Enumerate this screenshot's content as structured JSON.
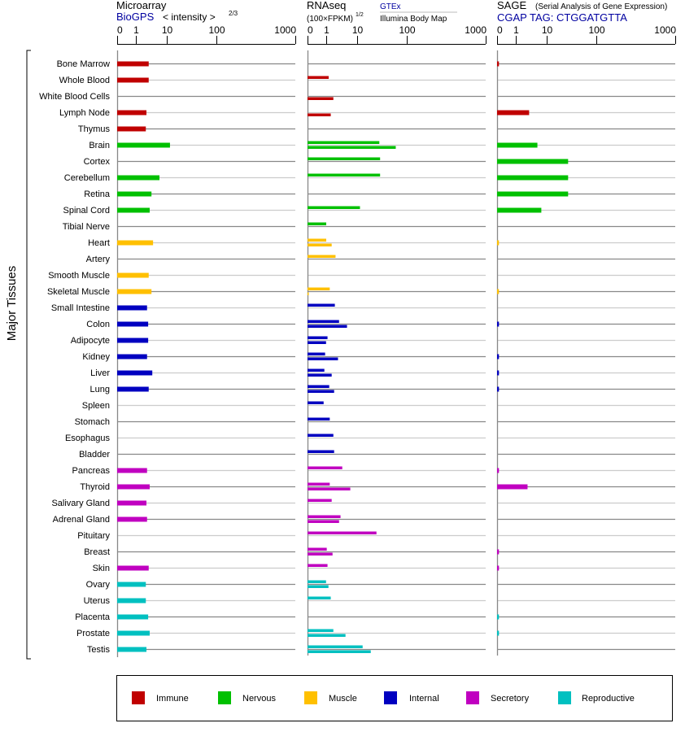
{
  "chart_data": {
    "type": "bar",
    "orientation": "horizontal",
    "y_axis_label": "Major Tissues",
    "axis_ticks": [
      0,
      1,
      10,
      100,
      1000
    ],
    "xlim": [
      0,
      1000
    ],
    "panels": [
      {
        "id": "microarray",
        "title": "Microarray",
        "source": "BioGPS",
        "unit_label": "< intensity >",
        "unit_exp": "2/3"
      },
      {
        "id": "rnaseq",
        "title": "RNAseq",
        "unit_label": "(100×FPKM)",
        "unit_exp": "1/2",
        "sources": [
          "GTEx",
          "Illumina Body Map"
        ]
      },
      {
        "id": "sage",
        "title": "SAGE",
        "subtitle": "(Serial Analysis of Gene Expression)",
        "source": "CGAP TAG: CTGGATGTTA"
      }
    ],
    "groups": [
      {
        "name": "Immune",
        "color": "#c00000"
      },
      {
        "name": "Nervous",
        "color": "#00c000"
      },
      {
        "name": "Muscle",
        "color": "#ffc000"
      },
      {
        "name": "Internal",
        "color": "#0000c0"
      },
      {
        "name": "Secretory",
        "color": "#c000c0"
      },
      {
        "name": "Reproductive",
        "color": "#00c0c0"
      }
    ],
    "categories": [
      "Bone Marrow",
      "Whole Blood",
      "White Blood Cells",
      "Lymph Node",
      "Thymus",
      "Brain",
      "Cortex",
      "Cerebellum",
      "Retina",
      "Spinal Cord",
      "Tibial Nerve",
      "Heart",
      "Artery",
      "Smooth Muscle",
      "Skeletal Muscle",
      "Small Intestine",
      "Colon",
      "Adipocyte",
      "Kidney",
      "Liver",
      "Lung",
      "Spleen",
      "Stomach",
      "Esophagus",
      "Bladder",
      "Pancreas",
      "Thyroid",
      "Salivary Gland",
      "Adrenal Gland",
      "Pituitary",
      "Breast",
      "Skin",
      "Ovary",
      "Uterus",
      "Placenta",
      "Prostate",
      "Testis"
    ],
    "category_groups": [
      "Immune",
      "Immune",
      "Immune",
      "Immune",
      "Immune",
      "Nervous",
      "Nervous",
      "Nervous",
      "Nervous",
      "Nervous",
      "Nervous",
      "Muscle",
      "Muscle",
      "Muscle",
      "Muscle",
      "Internal",
      "Internal",
      "Internal",
      "Internal",
      "Internal",
      "Internal",
      "Internal",
      "Internal",
      "Internal",
      "Internal",
      "Secretory",
      "Secretory",
      "Secretory",
      "Secretory",
      "Secretory",
      "Secretory",
      "Secretory",
      "Reproductive",
      "Reproductive",
      "Reproductive",
      "Reproductive",
      "Reproductive"
    ],
    "series": [
      {
        "name": "BioGPS",
        "panel": "microarray",
        "values": [
          2.6,
          2.6,
          null,
          2.2,
          2.1,
          11.6,
          null,
          5.8,
          3.2,
          2.8,
          null,
          3.6,
          null,
          2.6,
          3.2,
          2.3,
          2.5,
          2.5,
          2.3,
          3.4,
          2.6,
          null,
          null,
          null,
          null,
          2.3,
          2.8,
          2.2,
          2.3,
          null,
          null,
          2.6,
          2.1,
          2.1,
          2.5,
          2.8,
          2.2
        ]
      },
      {
        "name": "GTEx",
        "panel": "rnaseq",
        "values": [
          null,
          1.2,
          null,
          null,
          null,
          28,
          29,
          29,
          null,
          11.4,
          1.0,
          1.0,
          2.0,
          null,
          1.3,
          1.9,
          2.6,
          1.1,
          0.94,
          0.9,
          1.25,
          0.86,
          1.3,
          1.7,
          1.8,
          3.3,
          1.3,
          1.5,
          2.9,
          24.5,
          1.04,
          1.1,
          0.99,
          1.4,
          null,
          1.7,
          12.9
        ]
      },
      {
        "name": "Illumina Body Map",
        "panel": "rnaseq",
        "values": [
          null,
          null,
          1.7,
          1.4,
          null,
          60,
          null,
          null,
          null,
          null,
          null,
          1.5,
          null,
          null,
          0.04,
          null,
          4.7,
          0.99,
          2.4,
          1.5,
          1.8,
          null,
          null,
          null,
          null,
          null,
          6.0,
          null,
          2.6,
          null,
          1.6,
          null,
          1.18,
          null,
          null,
          4.2,
          18.8
        ]
      },
      {
        "name": "CGAP TAG: CTGGATGTTA",
        "panel": "sage",
        "values": [
          0.1,
          null,
          null,
          2.7,
          null,
          5.0,
          27,
          27,
          27,
          6.7,
          null,
          0.1,
          null,
          null,
          0.1,
          null,
          0.1,
          null,
          0.1,
          0.1,
          0.1,
          null,
          null,
          null,
          null,
          0.1,
          2.4,
          null,
          null,
          null,
          0.1,
          0.1,
          null,
          null,
          0.1,
          0.1,
          null
        ]
      }
    ],
    "legend_placement": "bottom",
    "grid": true
  }
}
